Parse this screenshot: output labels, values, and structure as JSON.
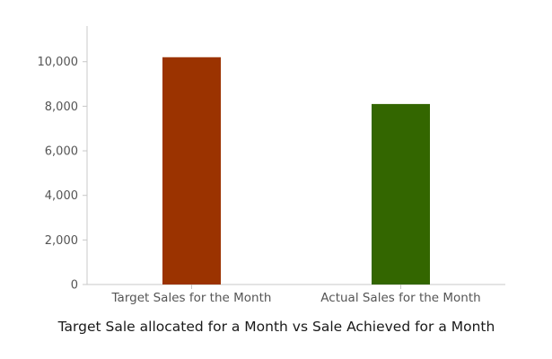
{
  "chart_data": {
    "type": "bar",
    "title": "",
    "xlabel": "Target Sale allocated for a Month vs Sale Achieved for a Month",
    "ylabel": "",
    "categories": [
      "Target Sales for the Month",
      "Actual Sales for the Month"
    ],
    "values": [
      10200,
      8100
    ],
    "colors": [
      "#9b3300",
      "#336600"
    ],
    "ylim": [
      0,
      11600
    ],
    "yticks": [
      0,
      2000,
      4000,
      6000,
      8000,
      10000
    ],
    "ytick_labels": [
      "0",
      "2,000",
      "4,000",
      "6,000",
      "8,000",
      "10,000"
    ],
    "grid": false,
    "legend": "none"
  }
}
